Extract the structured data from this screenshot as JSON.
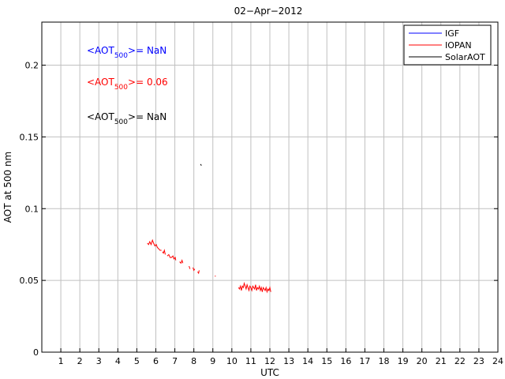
{
  "chart_data": {
    "type": "line",
    "title": "02−Apr−2012",
    "xlabel": "UTC",
    "ylabel": "AOT at 500 nm",
    "xlim": [
      0,
      24
    ],
    "ylim": [
      0,
      0.23
    ],
    "xticks": [
      1,
      2,
      3,
      4,
      5,
      6,
      7,
      8,
      9,
      10,
      11,
      12,
      13,
      14,
      15,
      16,
      17,
      18,
      19,
      20,
      21,
      22,
      23,
      24
    ],
    "yticks": [
      0,
      0.05,
      0.1,
      0.15,
      0.2
    ],
    "ytick_labels": [
      "0",
      "0.05",
      "0.1",
      "0.15",
      "0.2"
    ],
    "grid": true,
    "legend_position": "top-right",
    "series": [
      {
        "name": "IGF",
        "color": "#0000ff",
        "points": []
      },
      {
        "name": "IOPAN",
        "color": "#ff0000",
        "segments": [
          [
            [
              5.55,
              0.076
            ],
            [
              5.62,
              0.075
            ],
            [
              5.68,
              0.077
            ],
            [
              5.75,
              0.075
            ],
            [
              5.82,
              0.078
            ],
            [
              5.88,
              0.076
            ],
            [
              5.95,
              0.074
            ],
            [
              6.02,
              0.075
            ],
            [
              6.08,
              0.073
            ],
            [
              6.15,
              0.072
            ],
            [
              6.22,
              0.071
            ],
            [
              6.3,
              0.071
            ]
          ],
          [
            [
              6.35,
              0.07
            ],
            [
              6.4,
              0.069
            ],
            [
              6.45,
              0.071
            ],
            [
              6.5,
              0.068
            ]
          ],
          [
            [
              6.6,
              0.067
            ],
            [
              6.68,
              0.068
            ],
            [
              6.75,
              0.066
            ],
            [
              6.82,
              0.066
            ],
            [
              6.9,
              0.067
            ],
            [
              6.95,
              0.065
            ],
            [
              7.02,
              0.066
            ],
            [
              7.05,
              0.064
            ]
          ],
          [
            [
              7.25,
              0.063
            ],
            [
              7.32,
              0.062
            ],
            [
              7.38,
              0.064
            ],
            [
              7.42,
              0.062
            ]
          ],
          [
            [
              7.75,
              0.06
            ],
            [
              7.8,
              0.058
            ]
          ],
          [
            [
              7.95,
              0.059
            ],
            [
              8.0,
              0.057
            ],
            [
              8.05,
              0.058
            ]
          ],
          [
            [
              8.2,
              0.056
            ],
            [
              8.25,
              0.055
            ],
            [
              8.28,
              0.057
            ]
          ],
          [
            [
              9.1,
              0.053
            ],
            [
              9.15,
              0.053
            ]
          ],
          [
            [
              10.35,
              0.045
            ],
            [
              10.4,
              0.044
            ],
            [
              10.45,
              0.046
            ],
            [
              10.5,
              0.043
            ],
            [
              10.55,
              0.046
            ],
            [
              10.6,
              0.045
            ],
            [
              10.65,
              0.048
            ],
            [
              10.7,
              0.046
            ],
            [
              10.75,
              0.044
            ],
            [
              10.8,
              0.047
            ],
            [
              10.85,
              0.045
            ],
            [
              10.9,
              0.043
            ],
            [
              10.95,
              0.046
            ],
            [
              11.0,
              0.045
            ],
            [
              11.05,
              0.043
            ],
            [
              11.1,
              0.046
            ],
            [
              11.15,
              0.045
            ],
            [
              11.2,
              0.044
            ],
            [
              11.25,
              0.047
            ],
            [
              11.3,
              0.043
            ],
            [
              11.35,
              0.045
            ],
            [
              11.4,
              0.044
            ],
            [
              11.45,
              0.046
            ],
            [
              11.5,
              0.043
            ],
            [
              11.55,
              0.045
            ],
            [
              11.6,
              0.042
            ],
            [
              11.65,
              0.045
            ],
            [
              11.7,
              0.044
            ],
            [
              11.75,
              0.043
            ],
            [
              11.8,
              0.045
            ],
            [
              11.85,
              0.042
            ],
            [
              11.9,
              0.044
            ],
            [
              11.95,
              0.043
            ],
            [
              12.0,
              0.045
            ],
            [
              12.05,
              0.042
            ]
          ]
        ]
      },
      {
        "name": "SolarAOT",
        "color": "#000000",
        "segments": [
          [
            [
              8.35,
              0.131
            ],
            [
              8.4,
              0.13
            ]
          ]
        ]
      }
    ],
    "annotations": [
      {
        "prefix": "<AOT",
        "sub": "500",
        "suffix": ">=  NaN",
        "color": "#0000ff"
      },
      {
        "prefix": "<AOT",
        "sub": "500",
        "suffix": ">= 0.06",
        "color": "#ff0000"
      },
      {
        "prefix": "<AOT",
        "sub": "500",
        "suffix": ">=  NaN",
        "color": "#000000"
      }
    ]
  }
}
